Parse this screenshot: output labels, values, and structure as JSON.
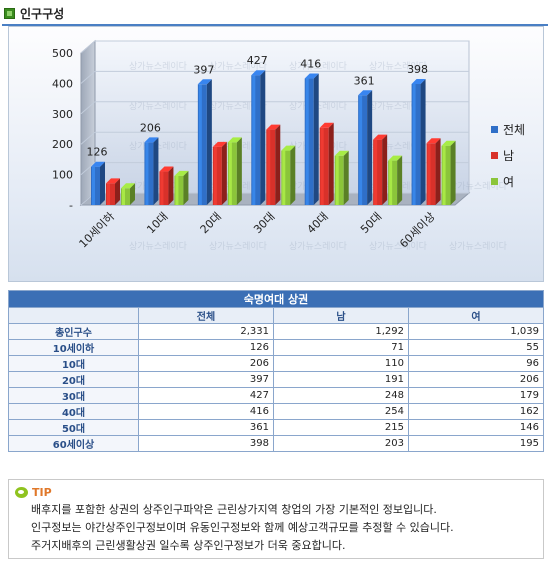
{
  "header": {
    "title": "인구구성"
  },
  "chart_data": {
    "type": "bar",
    "categories": [
      "10세이하",
      "10대",
      "20대",
      "30대",
      "40대",
      "50대",
      "60세이상"
    ],
    "series": [
      {
        "name": "전체",
        "values": [
          126,
          206,
          397,
          427,
          416,
          361,
          398
        ],
        "color": "#2f6fc8"
      },
      {
        "name": "남",
        "values": [
          71,
          110,
          191,
          248,
          254,
          215,
          203
        ],
        "color": "#d8312a"
      },
      {
        "name": "여",
        "values": [
          55,
          96,
          206,
          179,
          162,
          146,
          195
        ],
        "color": "#8bc53a"
      }
    ],
    "data_labels": [
      "126",
      "206",
      "397",
      "427",
      "416",
      "361",
      "398"
    ],
    "y_ticks": [
      "500",
      "400",
      "300",
      "200",
      "100",
      "-"
    ],
    "ylim": [
      0,
      500
    ],
    "legend_position": "right",
    "watermark": "상가뉴스레이다"
  },
  "table": {
    "caption": "숙명여대 상권",
    "columns": [
      "전체",
      "남",
      "여"
    ],
    "rows": [
      {
        "label": "총인구수",
        "values": [
          "2,331",
          "1,292",
          "1,039"
        ]
      },
      {
        "label": "10세이하",
        "values": [
          "126",
          "71",
          "55"
        ]
      },
      {
        "label": "10대",
        "values": [
          "206",
          "110",
          "96"
        ]
      },
      {
        "label": "20대",
        "values": [
          "397",
          "191",
          "206"
        ]
      },
      {
        "label": "30대",
        "values": [
          "427",
          "248",
          "179"
        ]
      },
      {
        "label": "40대",
        "values": [
          "416",
          "254",
          "162"
        ]
      },
      {
        "label": "50대",
        "values": [
          "361",
          "215",
          "146"
        ]
      },
      {
        "label": "60세이상",
        "values": [
          "398",
          "203",
          "195"
        ]
      }
    ]
  },
  "tip": {
    "label": "TIP",
    "lines": [
      "배후지를 포함한 상권의 상주인구파악은 근린상가지역 창업의 가장 기본적인 정보입니다.",
      "인구정보는 야간상주인구정보이며 유동인구정보와 함께 예상고객규모를 추정할 수 있습니다.",
      "주거지배후의 근린생활상권 일수록 상주인구정보가 더욱 중요합니다."
    ]
  }
}
